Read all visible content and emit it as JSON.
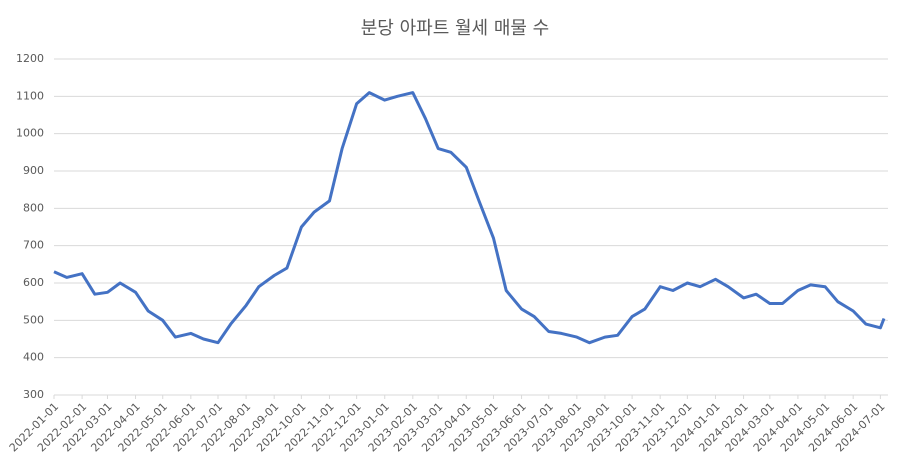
{
  "chart_data": {
    "type": "line",
    "title": "분당 아파트 월세 매물 수",
    "x": [
      "2022-01-01",
      "2022-01-15",
      "2022-02-01",
      "2022-02-15",
      "2022-03-01",
      "2022-03-15",
      "2022-04-01",
      "2022-04-15",
      "2022-05-01",
      "2022-05-15",
      "2022-06-01",
      "2022-06-15",
      "2022-07-01",
      "2022-07-15",
      "2022-08-01",
      "2022-08-15",
      "2022-09-01",
      "2022-09-15",
      "2022-10-01",
      "2022-10-15",
      "2022-11-01",
      "2022-11-15",
      "2022-12-01",
      "2022-12-15",
      "2023-01-01",
      "2023-01-15",
      "2023-02-01",
      "2023-02-15",
      "2023-03-01",
      "2023-03-15",
      "2023-04-01",
      "2023-04-15",
      "2023-05-01",
      "2023-05-15",
      "2023-06-01",
      "2023-06-15",
      "2023-07-01",
      "2023-07-15",
      "2023-08-01",
      "2023-08-15",
      "2023-09-01",
      "2023-09-15",
      "2023-10-01",
      "2023-10-15",
      "2023-11-01",
      "2023-11-15",
      "2023-12-01",
      "2023-12-15",
      "2024-01-01",
      "2024-01-15",
      "2024-02-01",
      "2024-02-15",
      "2024-03-01",
      "2024-03-15",
      "2024-04-01",
      "2024-04-15",
      "2024-05-01",
      "2024-05-15",
      "2024-06-01",
      "2024-06-15",
      "2024-07-01",
      "2024-07-05"
    ],
    "series": [
      {
        "name": "분당 아파트 월세 매물 수",
        "color": "#4472c4",
        "values": [
          630,
          615,
          625,
          570,
          575,
          600,
          575,
          525,
          500,
          455,
          465,
          450,
          440,
          490,
          540,
          590,
          620,
          640,
          750,
          790,
          820,
          960,
          1080,
          1110,
          1090,
          1100,
          1110,
          1040,
          960,
          950,
          910,
          820,
          720,
          580,
          530,
          510,
          470,
          465,
          455,
          440,
          455,
          460,
          510,
          530,
          590,
          580,
          600,
          590,
          610,
          590,
          560,
          570,
          545,
          545,
          580,
          595,
          590,
          550,
          525,
          490,
          480,
          505
        ]
      }
    ],
    "xlim": [
      "2022-01-01",
      "2024-07-05"
    ],
    "xticks": [
      "2022-01-01",
      "2022-02-01",
      "2022-03-01",
      "2022-04-01",
      "2022-05-01",
      "2022-06-01",
      "2022-07-01",
      "2022-08-01",
      "2022-09-01",
      "2022-10-01",
      "2022-11-01",
      "2022-12-01",
      "2023-01-01",
      "2023-02-01",
      "2023-03-01",
      "2023-04-01",
      "2023-05-01",
      "2023-06-01",
      "2023-07-01",
      "2023-08-01",
      "2023-09-01",
      "2023-10-01",
      "2023-11-01",
      "2023-12-01",
      "2024-01-01",
      "2024-02-01",
      "2024-03-01",
      "2024-04-01",
      "2024-05-01",
      "2024-06-01",
      "2024-07-01"
    ],
    "ylim": [
      300,
      1200
    ],
    "yticks": [
      300,
      400,
      500,
      600,
      700,
      800,
      900,
      1000,
      1100,
      1200
    ],
    "grid": true
  }
}
